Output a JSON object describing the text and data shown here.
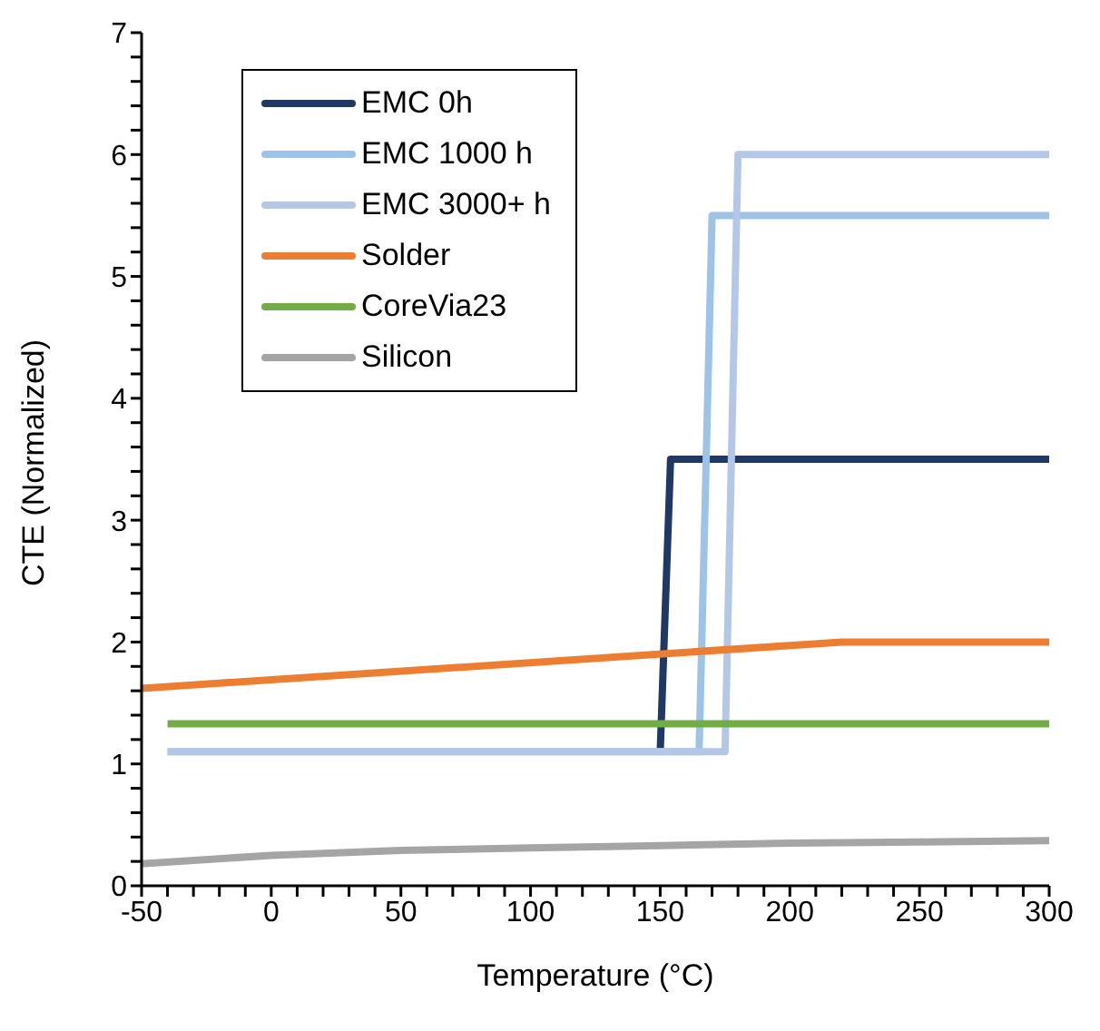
{
  "chart_data": {
    "type": "line",
    "xlabel": "Temperature (°C)",
    "ylabel": "CTE (Normalized)",
    "xlim": [
      -50,
      300
    ],
    "ylim": [
      0,
      7
    ],
    "xticks": [
      -50,
      {
        "value": -40,
        "label": null
      },
      {
        "value": -30,
        "label": null
      },
      {
        "value": -20,
        "label": null
      },
      {
        "value": -10,
        "label": null
      },
      0,
      {
        "value": 10,
        "label": null
      },
      {
        "value": 20,
        "label": null
      },
      {
        "value": 30,
        "label": null
      },
      {
        "value": 40,
        "label": null
      },
      50,
      {
        "value": 60,
        "label": null
      },
      {
        "value": 70,
        "label": null
      },
      {
        "value": 80,
        "label": null
      },
      {
        "value": 90,
        "label": null
      },
      100,
      {
        "value": 110,
        "label": null
      },
      {
        "value": 120,
        "label": null
      },
      {
        "value": 130,
        "label": null
      },
      {
        "value": 140,
        "label": null
      },
      150,
      {
        "value": 160,
        "label": null
      },
      {
        "value": 170,
        "label": null
      },
      {
        "value": 180,
        "label": null
      },
      {
        "value": 190,
        "label": null
      },
      200,
      {
        "value": 210,
        "label": null
      },
      {
        "value": 220,
        "label": null
      },
      {
        "value": 230,
        "label": null
      },
      {
        "value": 240,
        "label": null
      },
      250,
      {
        "value": 260,
        "label": null
      },
      {
        "value": 270,
        "label": null
      },
      {
        "value": 280,
        "label": null
      },
      {
        "value": 290,
        "label": null
      },
      300
    ],
    "yticks": [
      0,
      {
        "value": 0.2,
        "label": null
      },
      {
        "value": 0.4,
        "label": null
      },
      {
        "value": 0.6,
        "label": null
      },
      {
        "value": 0.8,
        "label": null
      },
      1,
      {
        "value": 1.2,
        "label": null
      },
      {
        "value": 1.4,
        "label": null
      },
      {
        "value": 1.6,
        "label": null
      },
      {
        "value": 1.8,
        "label": null
      },
      2,
      {
        "value": 2.2,
        "label": null
      },
      {
        "value": 2.4,
        "label": null
      },
      {
        "value": 2.6,
        "label": null
      },
      {
        "value": 2.8,
        "label": null
      },
      3,
      {
        "value": 3.2,
        "label": null
      },
      {
        "value": 3.4,
        "label": null
      },
      {
        "value": 3.6,
        "label": null
      },
      {
        "value": 3.8,
        "label": null
      },
      4,
      {
        "value": 4.2,
        "label": null
      },
      {
        "value": 4.4,
        "label": null
      },
      {
        "value": 4.6,
        "label": null
      },
      {
        "value": 4.8,
        "label": null
      },
      5,
      {
        "value": 5.2,
        "label": null
      },
      {
        "value": 5.4,
        "label": null
      },
      {
        "value": 5.6,
        "label": null
      },
      {
        "value": 5.8,
        "label": null
      },
      6,
      {
        "value": 6.2,
        "label": null
      },
      {
        "value": 6.4,
        "label": null
      },
      {
        "value": 6.6,
        "label": null
      },
      {
        "value": 6.8,
        "label": null
      },
      7
    ],
    "grid": false,
    "legend": "top left",
    "marker": "none",
    "line_style": "solid",
    "series": [
      {
        "name": "EMC 0h",
        "color": "#1f3864",
        "x": [
          150,
          154,
          300
        ],
        "values": [
          1.1,
          3.5,
          3.5
        ]
      },
      {
        "name": "EMC 1000 h",
        "color": "#9dc3e6",
        "x": [
          -40,
          165,
          170,
          300
        ],
        "values": [
          1.1,
          1.1,
          5.5,
          5.5
        ]
      },
      {
        "name": "EMC 3000+ h",
        "color": "#b4c7e7",
        "x": [
          -40,
          175,
          180,
          300
        ],
        "values": [
          1.1,
          1.1,
          6,
          6
        ]
      },
      {
        "name": "Solder",
        "color": "#ed7d31",
        "x": [
          -50,
          220,
          300
        ],
        "values": [
          1.62,
          2,
          2
        ]
      },
      {
        "name": "CoreVia23",
        "color": "#70ad47",
        "x": [
          -40,
          300
        ],
        "values": [
          1.33,
          1.33
        ]
      },
      {
        "name": "Silicon",
        "color": "#a5a5a5",
        "x": [
          -50,
          0,
          50,
          100,
          150,
          200,
          250,
          300
        ],
        "values": [
          0.18,
          0.25,
          0.29,
          0.31,
          0.33,
          0.35,
          0.36,
          0.37
        ]
      }
    ]
  }
}
